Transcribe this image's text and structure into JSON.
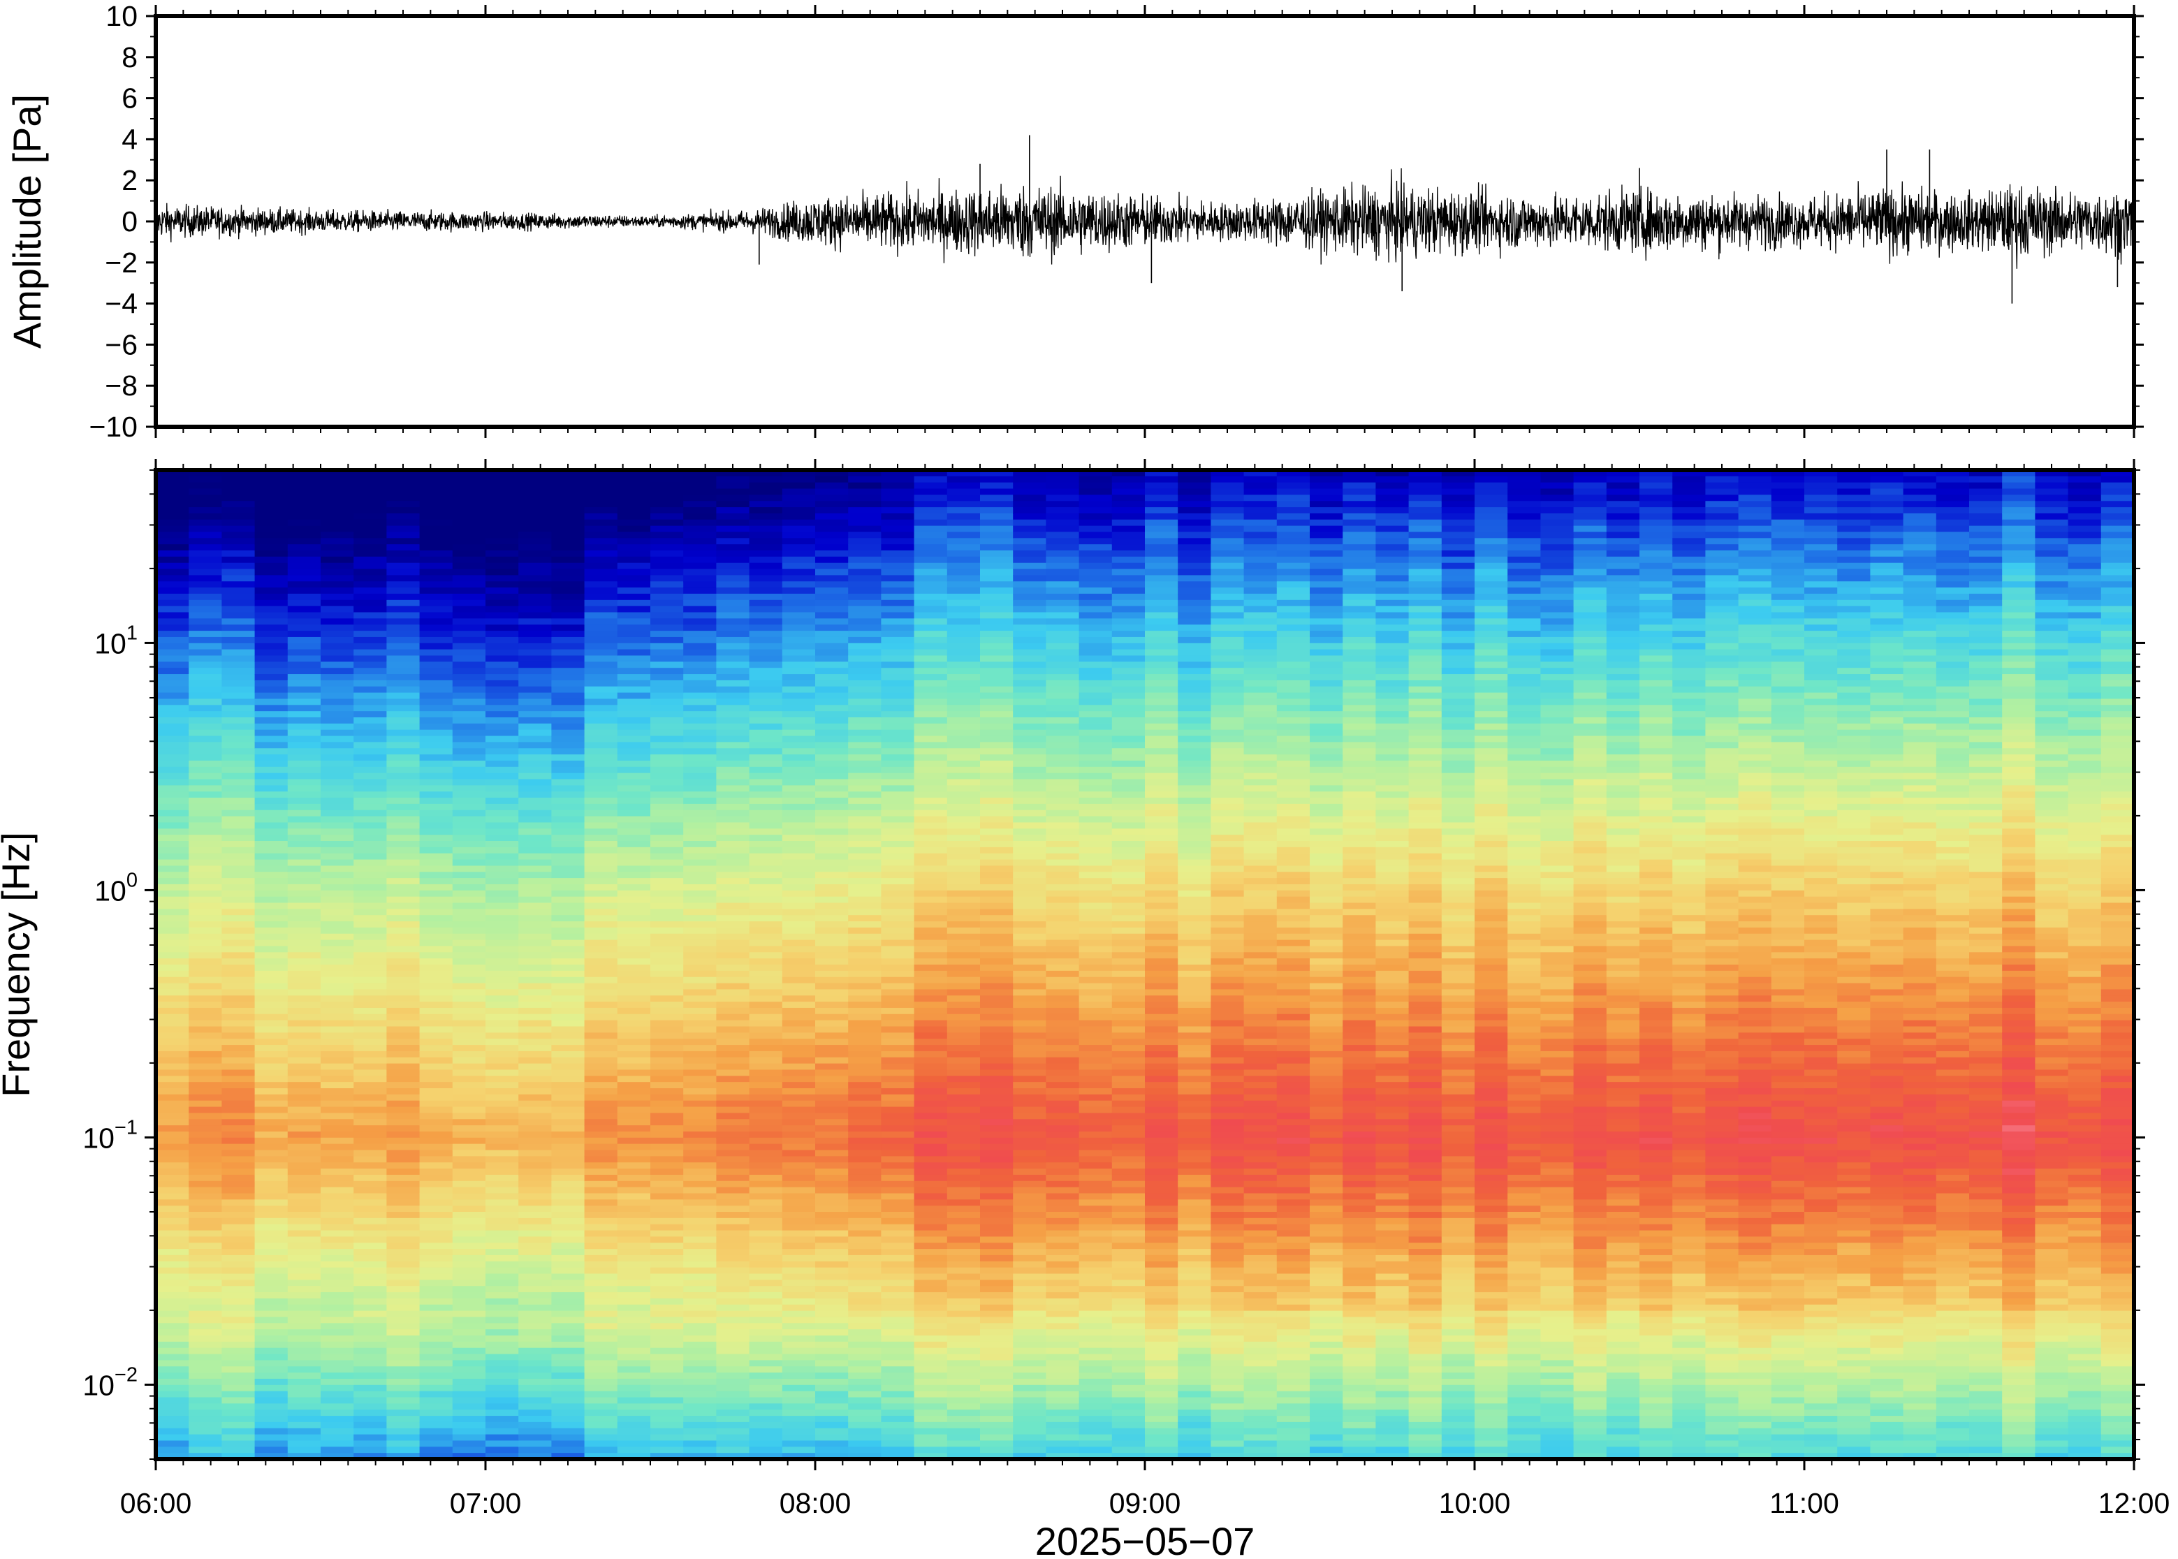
{
  "chart_data": [
    {
      "type": "line",
      "panel": "waveform",
      "title": "",
      "xlabel": "",
      "ylabel": "Amplitude [Pa]",
      "ylim": [
        -10,
        10
      ],
      "yticks": [
        10,
        8,
        6,
        4,
        2,
        0,
        -2,
        -4,
        -6,
        -8,
        -10
      ],
      "ytick_labels": [
        "10",
        "8",
        "6",
        "4",
        "2",
        "0",
        "−2",
        "−4",
        "−6",
        "−8",
        "−10"
      ],
      "x_hours_range": [
        6,
        12
      ],
      "series": [
        {
          "values_description": "high-rate pressure trace",
          "envelope_hours": [
            6.0,
            6.5,
            7.0,
            7.5,
            7.8,
            8.0,
            8.5,
            8.65,
            9.0,
            9.25,
            9.5,
            9.75,
            10.0,
            10.25,
            10.5,
            10.75,
            11.0,
            11.25,
            11.5,
            11.65,
            11.8,
            12.0
          ],
          "envelope_amplitude_pa": [
            0.9,
            0.6,
            0.5,
            0.3,
            0.6,
            1.3,
            1.8,
            2.0,
            1.4,
            1.0,
            1.5,
            2.0,
            1.6,
            1.4,
            1.7,
            1.5,
            1.3,
            1.8,
            1.5,
            2.0,
            1.6,
            1.8
          ],
          "peaks": [
            {
              "hour": 8.65,
              "value": 4.2
            },
            {
              "hour": 8.5,
              "value": 2.8
            },
            {
              "hour": 9.02,
              "value": -3.0
            },
            {
              "hour": 9.78,
              "value": -3.4
            },
            {
              "hour": 11.25,
              "value": 3.5
            },
            {
              "hour": 11.38,
              "value": 3.5
            },
            {
              "hour": 11.63,
              "value": -4.0
            },
            {
              "hour": 11.95,
              "value": -3.2
            },
            {
              "hour": 7.83,
              "value": -2.1
            },
            {
              "hour": 10.5,
              "value": 2.6
            }
          ],
          "color": "#000000"
        }
      ]
    },
    {
      "type": "heatmap",
      "panel": "spectrogram",
      "title": "",
      "ylabel": "Frequency [Hz]",
      "xlabel": "2025−05−07",
      "y_scale": "log",
      "ylim": [
        0.005,
        50
      ],
      "yticks": [
        0.01,
        0.1,
        1,
        10
      ],
      "ytick_bases": [
        "10",
        "10",
        "10",
        "10"
      ],
      "ytick_exponents": [
        "−2",
        "−1",
        "0",
        "1"
      ],
      "x_tick_labels": [
        "06:00",
        "07:00",
        "08:00",
        "09:00",
        "10:00",
        "11:00",
        "12:00"
      ],
      "x_tick_hours": [
        6,
        7,
        8,
        9,
        10,
        11,
        12
      ],
      "colormap": [
        "#000080",
        "#0000cd",
        "#1e6ee6",
        "#3ccbf0",
        "#6ee6c8",
        "#b4f0a0",
        "#e6f08c",
        "#f5d26e",
        "#f5a046",
        "#f0643c",
        "#f04b50",
        "#fa8c9b"
      ],
      "level_hours": [
        6.0,
        6.5,
        7.0,
        7.5,
        7.8,
        8.0,
        8.5,
        9.0,
        9.5,
        10.0,
        10.5,
        11.0,
        11.5,
        12.0
      ],
      "level_profile": [
        0.15,
        0.05,
        0.0,
        0.02,
        0.2,
        0.55,
        0.65,
        0.6,
        0.75,
        0.7,
        0.8,
        0.75,
        0.85,
        0.8
      ]
    }
  ]
}
